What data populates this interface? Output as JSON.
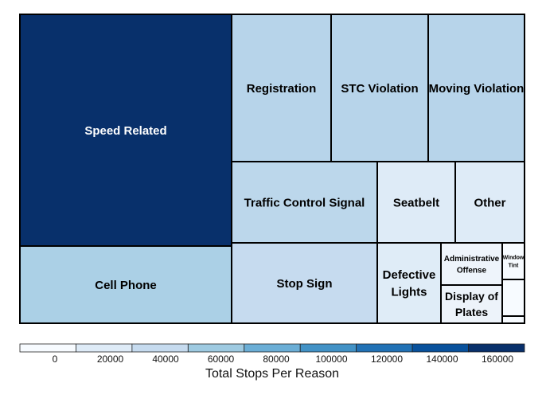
{
  "chart_data": {
    "type": "treemap",
    "value_unit": "Total Stops Per Reason",
    "tiles": [
      {
        "label": "Speed Related",
        "lines": [
          "Speed Related"
        ],
        "value": 158000,
        "color": "#08306b",
        "text_color": "#ffffff"
      },
      {
        "label": "Cell Phone",
        "lines": [
          "Cell Phone"
        ],
        "value": 56000,
        "color": "#abd0e6",
        "text_color": "#000000"
      },
      {
        "label": "Registration",
        "lines": [
          "Registration"
        ],
        "value": 49000,
        "color": "#b7d4ea",
        "text_color": "#000000"
      },
      {
        "label": "STC Violation",
        "lines": [
          "STC Violation"
        ],
        "value": 48000,
        "color": "#b7d4ea",
        "text_color": "#000000"
      },
      {
        "label": "Moving Violation",
        "lines": [
          "Moving Violation"
        ],
        "value": 47000,
        "color": "#b7d4ea",
        "text_color": "#000000"
      },
      {
        "label": "Traffic Control Signal",
        "lines": [
          "Traffic Control Signal"
        ],
        "value": 44000,
        "color": "#bcd7eb",
        "text_color": "#000000"
      },
      {
        "label": "Stop Sign",
        "lines": [
          "Stop Sign"
        ],
        "value": 42000,
        "color": "#c6dbef",
        "text_color": "#000000"
      },
      {
        "label": "Seatbelt",
        "lines": [
          "Seatbelt"
        ],
        "value": 22000,
        "color": "#deebf7",
        "text_color": "#000000"
      },
      {
        "label": "Other",
        "lines": [
          "Other"
        ],
        "value": 20000,
        "color": "#deebf7",
        "text_color": "#000000"
      },
      {
        "label": "Defective Lights",
        "lines": [
          "Defective",
          "Lights"
        ],
        "value": 18000,
        "color": "#dfecf7",
        "text_color": "#000000"
      },
      {
        "label": "Administrative Offense",
        "lines": [
          "Administrative",
          "Offense"
        ],
        "value": 9000,
        "color": "#eef4fb",
        "text_color": "#000000"
      },
      {
        "label": "Display of Plates",
        "lines": [
          "Display of",
          "Plates"
        ],
        "value": 9500,
        "color": "#edf3fa",
        "text_color": "#000000"
      },
      {
        "label": "Window Tint",
        "lines": [
          "Window",
          "Tint"
        ],
        "value": 3500,
        "color": "#f7fbff",
        "text_color": "#000000"
      },
      {
        "label": "",
        "lines": [],
        "value": 2500,
        "color": "#f7fbff",
        "text_color": "#000000"
      },
      {
        "label": "",
        "lines": [],
        "value": 500,
        "color": "#f7fbff",
        "text_color": "#000000"
      }
    ],
    "colorbar": {
      "title": "Total Stops Per Reason",
      "ticks": [
        "0",
        "20000",
        "40000",
        "60000",
        "80000",
        "100000",
        "120000",
        "140000",
        "160000"
      ],
      "colors": [
        "#f7fbff",
        "#deebf7",
        "#c6dbef",
        "#9ecae1",
        "#6baed6",
        "#4292c6",
        "#2171b5",
        "#08519c",
        "#08306b"
      ]
    }
  }
}
